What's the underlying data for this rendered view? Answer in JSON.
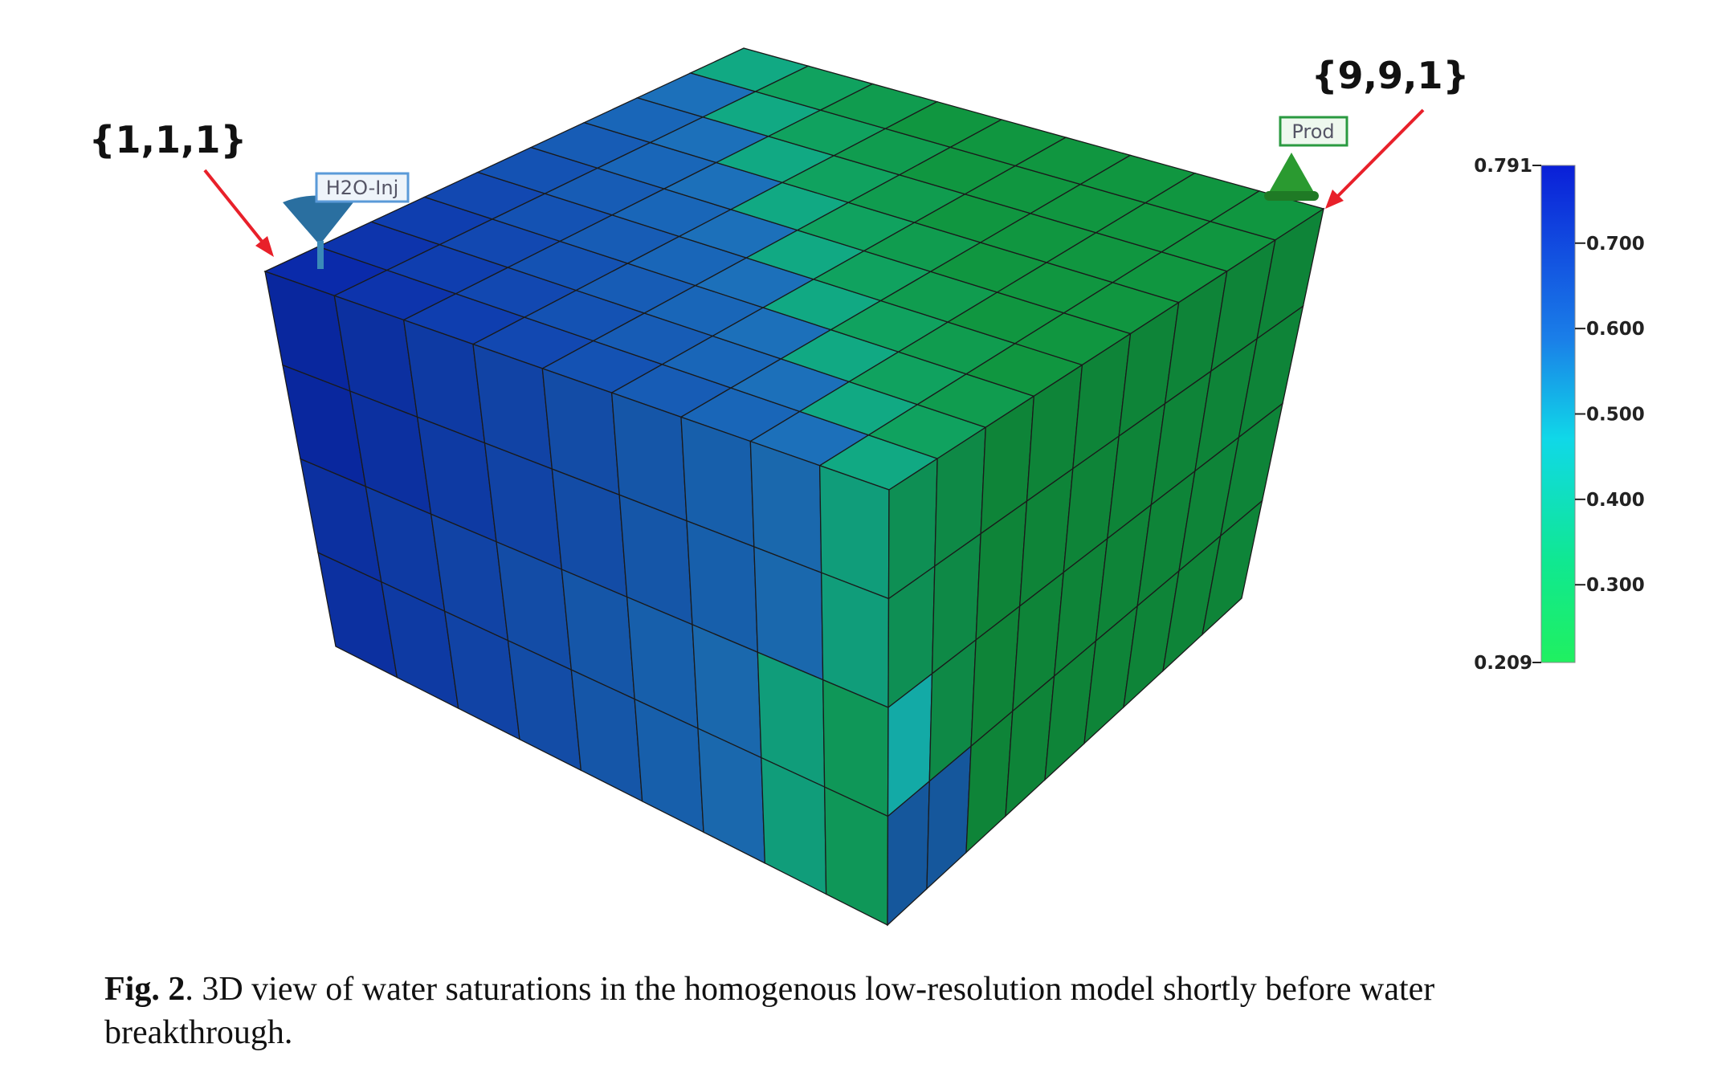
{
  "figure": {
    "labels": {
      "injector_cell": "{1,1,1}",
      "producer_cell": "{9,9,1}",
      "injector_well": "H2O-Inj",
      "producer_well": "Prod"
    },
    "colorbar": {
      "min": 0.209,
      "max": 0.791,
      "ticks": [
        {
          "value": 0.7,
          "label": "0.700"
        },
        {
          "value": 0.6,
          "label": "0.600"
        },
        {
          "value": 0.5,
          "label": "0.500"
        },
        {
          "value": 0.4,
          "label": "0.400"
        },
        {
          "value": 0.3,
          "label": "0.300"
        }
      ]
    },
    "caption": {
      "label": "Fig. 2",
      "text": ".  3D view of water saturations in the homogenous low-resolution model shortly before water breakthrough."
    }
  }
}
